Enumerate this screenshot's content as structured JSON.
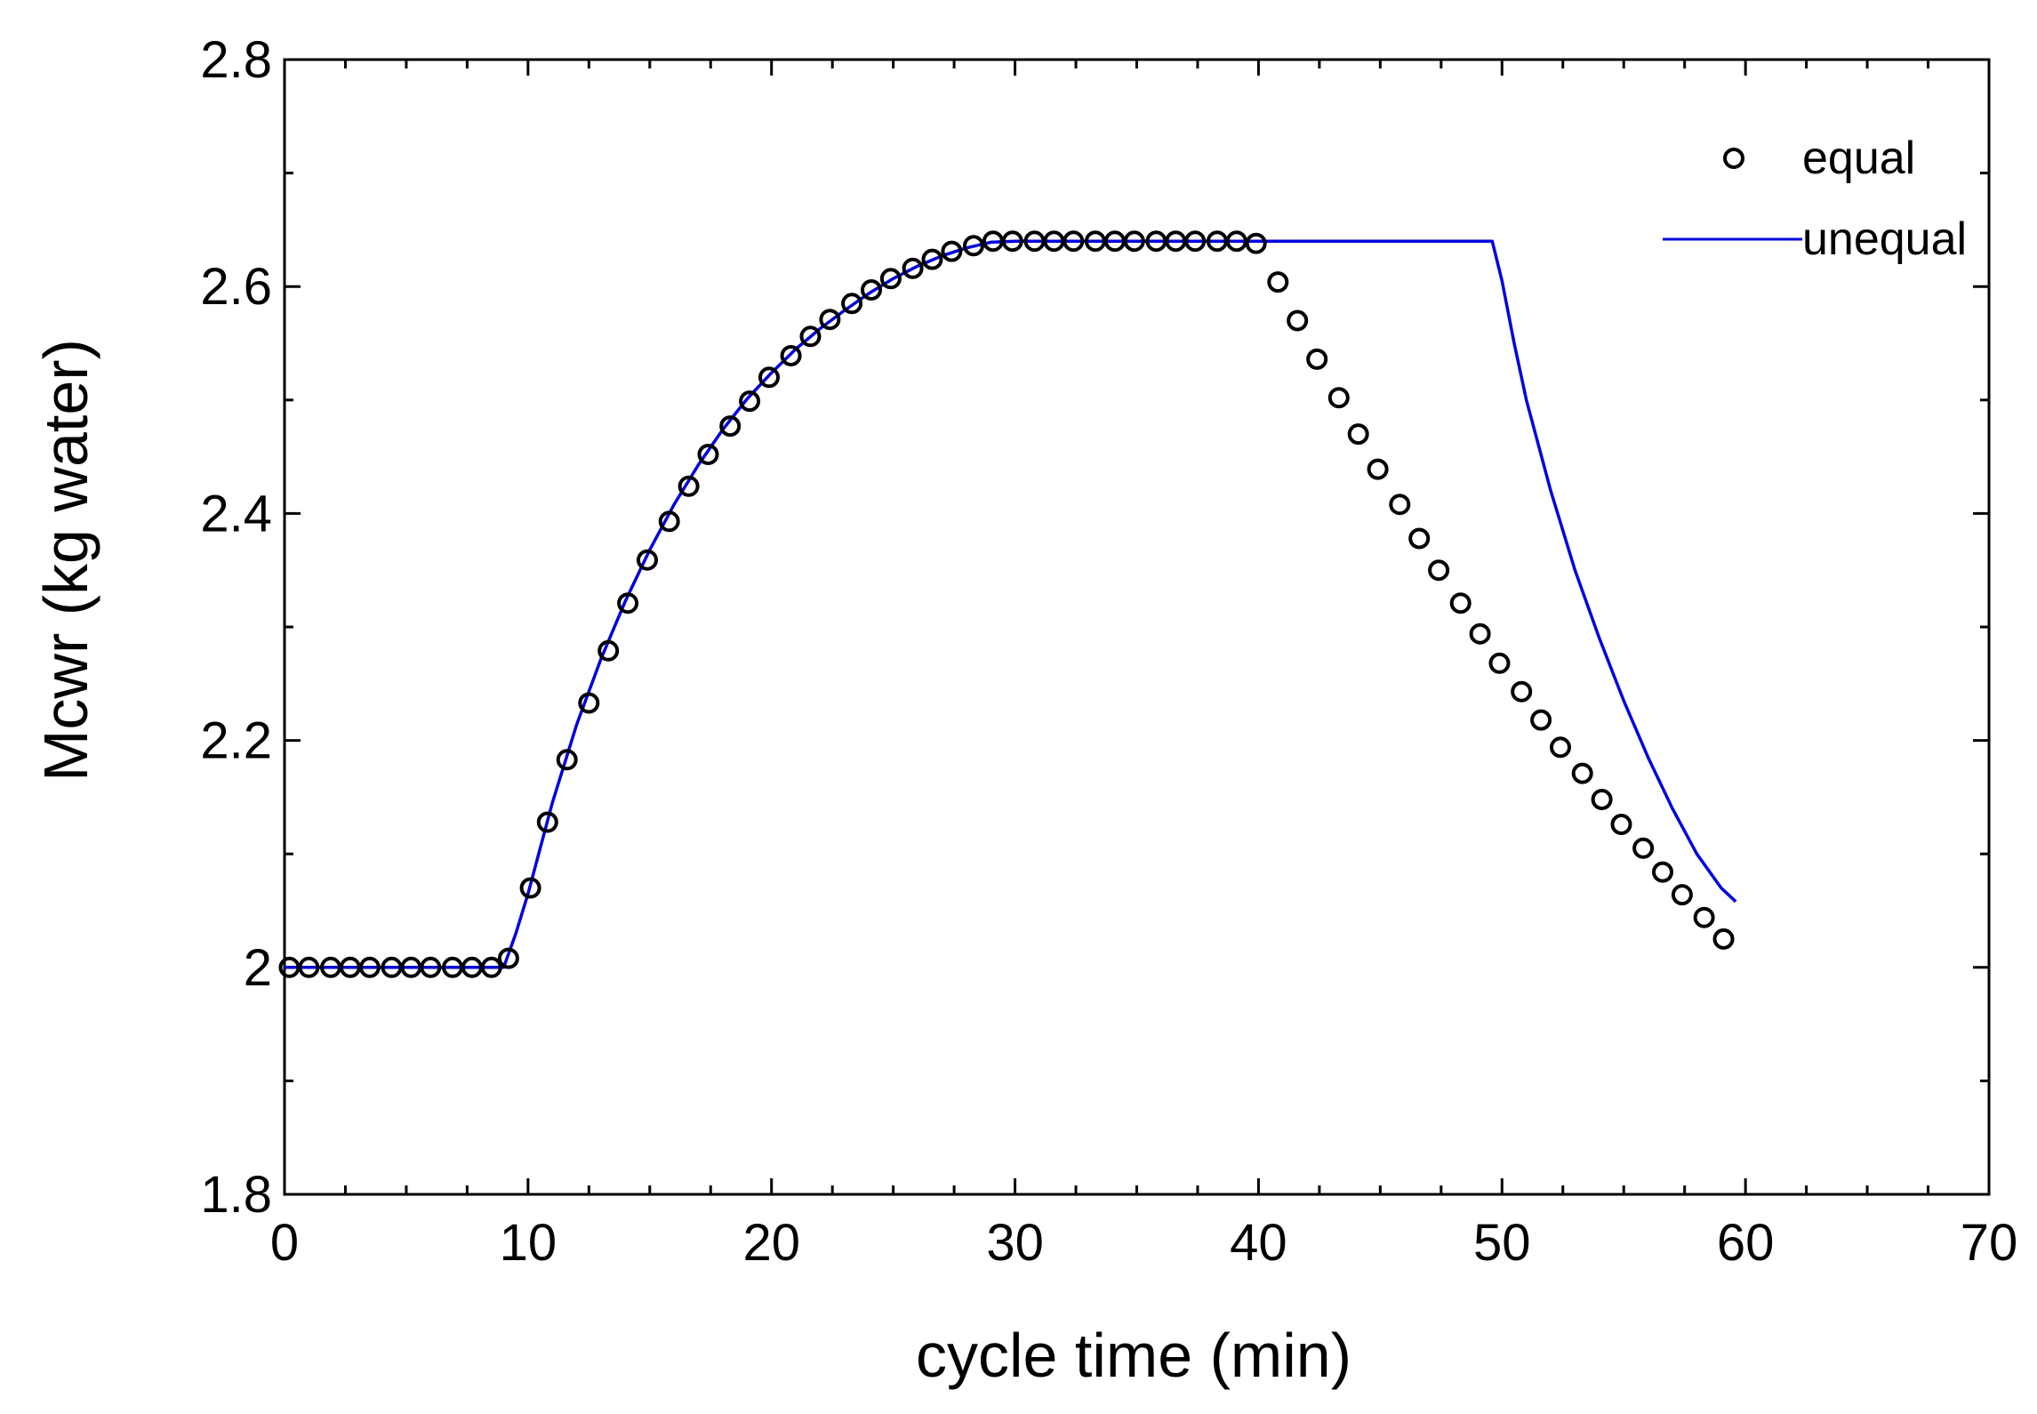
{
  "chart_data": {
    "type": "scatter",
    "title": "",
    "xlabel": "cycle time (min)",
    "ylabel": "Mcwr (kg water)",
    "xlim": [
      0,
      70
    ],
    "ylim": [
      1.8,
      2.8
    ],
    "xticks": [
      0,
      10,
      20,
      30,
      40,
      50,
      60,
      70
    ],
    "xtick_labels": [
      "0",
      "10",
      "20",
      "30",
      "40",
      "50",
      "60",
      "70"
    ],
    "yticks": [
      1.8,
      2.0,
      2.2,
      2.4,
      2.6,
      2.8
    ],
    "ytick_labels": [
      "1.8",
      "2",
      "2.2",
      "2.4",
      "2.6",
      "2.8"
    ],
    "grid": false,
    "legend_position": "top-right",
    "series": [
      {
        "name": "equal",
        "style": "open-circle",
        "color": "#000000",
        "x": [
          0.2,
          1.0,
          1.9,
          2.7,
          3.5,
          4.4,
          5.2,
          6.0,
          6.9,
          7.7,
          8.5,
          9.2,
          10.1,
          10.8,
          11.6,
          12.5,
          13.3,
          14.1,
          14.9,
          15.8,
          16.6,
          17.4,
          18.3,
          19.1,
          19.9,
          20.8,
          21.6,
          22.4,
          23.3,
          24.1,
          24.9,
          25.8,
          26.6,
          27.4,
          28.3,
          29.1,
          29.9,
          30.8,
          31.6,
          32.4,
          33.3,
          34.1,
          34.9,
          35.8,
          36.6,
          37.4,
          38.3,
          39.1,
          39.9,
          40.8,
          41.6,
          42.4,
          43.3,
          44.1,
          44.9,
          45.8,
          46.6,
          47.4,
          48.3,
          49.1,
          49.9,
          50.8,
          51.6,
          52.4,
          53.3,
          54.1,
          54.9,
          55.8,
          56.6,
          57.4,
          58.3,
          59.1
        ],
        "y": [
          2.0,
          2.0,
          2.0,
          2.0,
          2.0,
          2.0,
          2.0,
          2.0,
          2.0,
          2.0,
          2.0,
          2.008,
          2.07,
          2.128,
          2.183,
          2.233,
          2.279,
          2.321,
          2.359,
          2.393,
          2.424,
          2.452,
          2.477,
          2.499,
          2.52,
          2.539,
          2.556,
          2.571,
          2.585,
          2.597,
          2.607,
          2.616,
          2.624,
          2.631,
          2.636,
          2.64,
          2.64,
          2.64,
          2.64,
          2.64,
          2.64,
          2.64,
          2.64,
          2.64,
          2.64,
          2.64,
          2.64,
          2.64,
          2.638,
          2.604,
          2.57,
          2.536,
          2.502,
          2.47,
          2.439,
          2.408,
          2.378,
          2.35,
          2.321,
          2.294,
          2.268,
          2.243,
          2.218,
          2.194,
          2.171,
          2.148,
          2.126,
          2.105,
          2.084,
          2.064,
          2.044,
          2.025
        ]
      },
      {
        "name": "unequal",
        "style": "line",
        "color": "#0000e0",
        "x": [
          0,
          9.0,
          9.5,
          10.0,
          11.0,
          12.0,
          13.0,
          14.0,
          15.0,
          16.0,
          17.0,
          18.0,
          19.0,
          20.0,
          21.0,
          22.0,
          23.0,
          24.0,
          25.0,
          26.0,
          27.0,
          28.0,
          29.0,
          30.0,
          49.6,
          50.0,
          50.5,
          51.0,
          52.0,
          53.0,
          54.0,
          55.0,
          56.0,
          57.0,
          58.0,
          59.0,
          59.6
        ],
        "y": [
          2.0,
          2.0,
          2.03,
          2.065,
          2.145,
          2.214,
          2.272,
          2.323,
          2.368,
          2.408,
          2.443,
          2.474,
          2.501,
          2.524,
          2.545,
          2.563,
          2.579,
          2.594,
          2.607,
          2.618,
          2.627,
          2.634,
          2.639,
          2.64,
          2.64,
          2.605,
          2.55,
          2.5,
          2.42,
          2.35,
          2.29,
          2.235,
          2.185,
          2.14,
          2.1,
          2.07,
          2.058
        ]
      }
    ]
  }
}
